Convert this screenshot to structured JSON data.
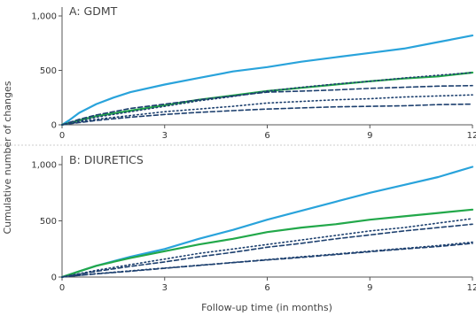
{
  "chart_data": {
    "type": "line",
    "ylabel": "Cumulative number of changes",
    "xlabel": "Follow-up time (in months)",
    "xlim": [
      0,
      12
    ],
    "xticks": [
      0,
      3,
      6,
      9,
      12
    ],
    "colors": {
      "blue": "#29a3db",
      "green": "#22a84a",
      "navy": "#1c3f6e",
      "axis": "#555555",
      "divider": "#999999"
    },
    "panels": [
      {
        "title": "A: GDMT",
        "ylim": [
          0,
          1000
        ],
        "yticks": [
          0,
          500,
          1000
        ],
        "ytick_labels": [
          "0",
          "500",
          "1,000"
        ],
        "series": [
          {
            "style": "solid",
            "color": "blue",
            "x": [
              0,
              0.2,
              0.5,
              1,
              1.5,
              2,
              3,
              4,
              5,
              6,
              7,
              8,
              9,
              10,
              11,
              12
            ],
            "y": [
              0,
              40,
              110,
              190,
              250,
              300,
              370,
              430,
              490,
              530,
              580,
              620,
              660,
              700,
              760,
              820
            ]
          },
          {
            "style": "solid",
            "color": "green",
            "x": [
              0,
              0.5,
              1,
              2,
              3,
              4,
              5,
              6,
              7,
              8,
              9,
              10,
              11,
              12
            ],
            "y": [
              0,
              40,
              80,
              130,
              180,
              230,
              270,
              310,
              340,
              370,
              400,
              425,
              445,
              480
            ]
          },
          {
            "style": "dotted",
            "color": "navy",
            "x": [
              0,
              0.5,
              1,
              2,
              3,
              4,
              5,
              6,
              7,
              8,
              9,
              10,
              11,
              12
            ],
            "y": [
              0,
              35,
              70,
              120,
              170,
              220,
              260,
              310,
              345,
              375,
              400,
              430,
              455,
              480
            ]
          },
          {
            "style": "dashed",
            "color": "navy",
            "x": [
              0,
              0.5,
              1,
              2,
              3,
              4,
              5,
              6,
              7,
              8,
              9,
              10,
              11,
              12
            ],
            "y": [
              0,
              50,
              90,
              150,
              190,
              230,
              265,
              300,
              310,
              320,
              335,
              345,
              355,
              360
            ]
          },
          {
            "style": "dotted",
            "color": "navy",
            "x": [
              0,
              0.5,
              1,
              2,
              3,
              4,
              5,
              6,
              7,
              8,
              9,
              10,
              11,
              12
            ],
            "y": [
              0,
              25,
              50,
              85,
              120,
              145,
              170,
              200,
              215,
              230,
              240,
              255,
              265,
              275
            ]
          },
          {
            "style": "dashed",
            "color": "navy",
            "x": [
              0,
              0.5,
              1,
              2,
              3,
              4,
              5,
              6,
              7,
              8,
              9,
              10,
              11,
              12
            ],
            "y": [
              0,
              20,
              40,
              70,
              95,
              115,
              130,
              145,
              155,
              165,
              170,
              175,
              185,
              190
            ]
          }
        ]
      },
      {
        "title": "B: DIURETICS",
        "ylim": [
          0,
          1000
        ],
        "yticks": [
          0,
          500,
          1000
        ],
        "ytick_labels": [
          "0",
          "500",
          "1,000"
        ],
        "series": [
          {
            "style": "solid",
            "color": "blue",
            "x": [
              0,
              0.5,
              1,
              2,
              3,
              4,
              5,
              6,
              7,
              8,
              9,
              10,
              11,
              12
            ],
            "y": [
              0,
              50,
              100,
              180,
              250,
              340,
              420,
              510,
              590,
              670,
              750,
              820,
              890,
              980
            ]
          },
          {
            "style": "solid",
            "color": "green",
            "x": [
              0,
              0.5,
              1,
              2,
              3,
              4,
              5,
              6,
              7,
              8,
              9,
              10,
              11,
              12
            ],
            "y": [
              0,
              50,
              100,
              170,
              230,
              290,
              340,
              400,
              440,
              470,
              510,
              540,
              570,
              600
            ]
          },
          {
            "style": "dotted",
            "color": "navy",
            "x": [
              0,
              0.5,
              1,
              2,
              3,
              4,
              5,
              6,
              7,
              8,
              9,
              10,
              11,
              12
            ],
            "y": [
              0,
              30,
              60,
              110,
              160,
              210,
              250,
              290,
              330,
              370,
              410,
              440,
              480,
              520
            ]
          },
          {
            "style": "dashed",
            "color": "navy",
            "x": [
              0,
              0.5,
              1,
              2,
              3,
              4,
              5,
              6,
              7,
              8,
              9,
              10,
              11,
              12
            ],
            "y": [
              0,
              25,
              50,
              95,
              135,
              180,
              220,
              265,
              300,
              340,
              375,
              410,
              440,
              470
            ]
          },
          {
            "style": "dotted",
            "color": "navy",
            "x": [
              0,
              0.5,
              1,
              2,
              3,
              4,
              5,
              6,
              7,
              8,
              9,
              10,
              11,
              12
            ],
            "y": [
              0,
              15,
              30,
              55,
              80,
              105,
              130,
              155,
              180,
              205,
              230,
              255,
              280,
              310
            ]
          },
          {
            "style": "dashed",
            "color": "navy",
            "x": [
              0,
              0.5,
              1,
              2,
              3,
              4,
              5,
              6,
              7,
              8,
              9,
              10,
              11,
              12
            ],
            "y": [
              0,
              15,
              28,
              52,
              78,
              103,
              128,
              152,
              175,
              200,
              225,
              250,
              272,
              300
            ]
          }
        ]
      }
    ]
  }
}
